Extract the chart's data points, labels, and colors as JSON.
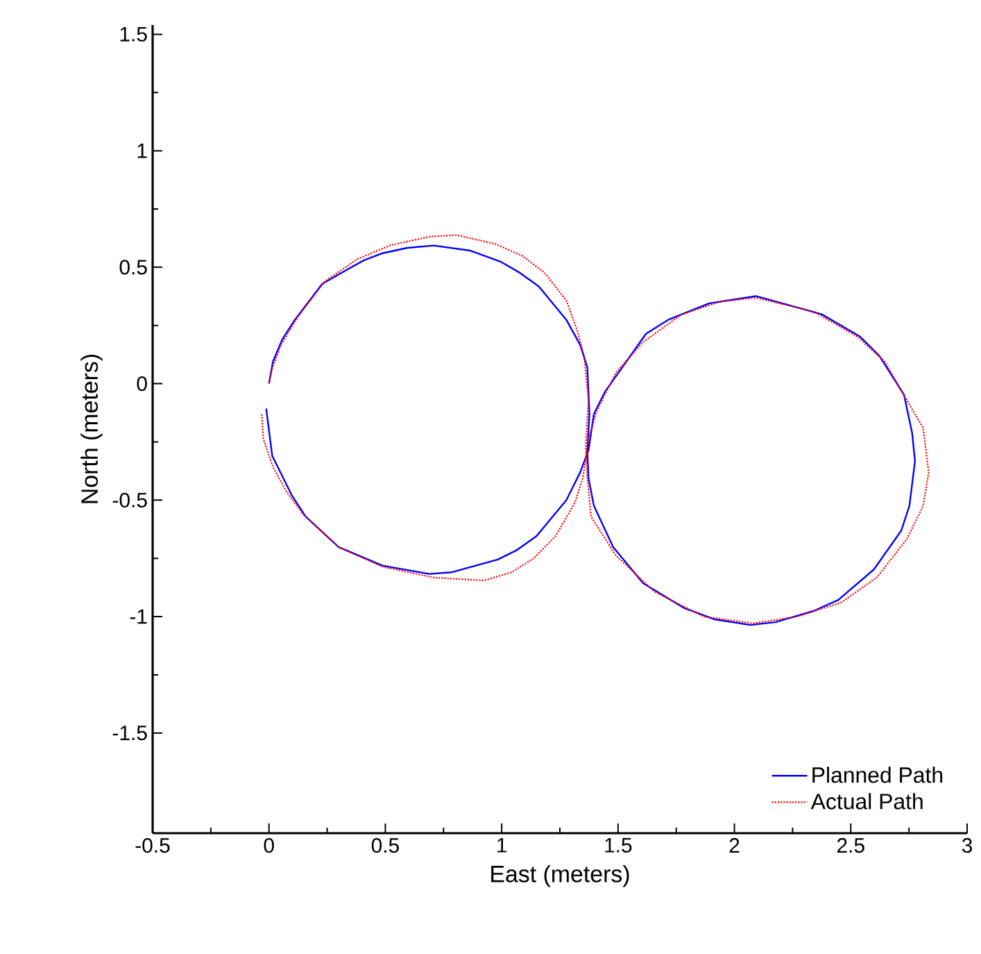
{
  "chart_data": {
    "type": "line",
    "xlabel": "East (meters)",
    "ylabel": "North (meters)",
    "xlim": [
      -0.5,
      3
    ],
    "ylim": [
      -1.93,
      1.54
    ],
    "xticks": [
      -0.5,
      0,
      0.5,
      1,
      1.5,
      2,
      2.5,
      3
    ],
    "yticks": [
      -1.5,
      -1,
      -0.5,
      0,
      0.5,
      1,
      1.5
    ],
    "grid": false,
    "legend": "bottom right",
    "series": [
      {
        "name": "Planned Path",
        "color": "#0000ff",
        "line_style": "solid",
        "x": [
          -0.012,
          0.014,
          0.099,
          0.158,
          0.3,
          0.488,
          0.689,
          0.783,
          0.983,
          1.066,
          1.149,
          1.278,
          1.337,
          1.373,
          1.396,
          1.443,
          1.62,
          1.715,
          1.892,
          2.092,
          2.375,
          2.54,
          2.623,
          2.729,
          2.764,
          2.776,
          2.752,
          2.717,
          2.599,
          2.446,
          2.34,
          2.175,
          2.068,
          1.915,
          1.785,
          1.608,
          1.479,
          1.396,
          1.373,
          1.368,
          1.377,
          1.368,
          1.337,
          1.278,
          1.16,
          1.078,
          0.995,
          0.866,
          0.708,
          0.594,
          0.488,
          0.406,
          0.229,
          0.111,
          0.057,
          0.017,
          0.0
        ],
        "values": [
          -0.107,
          -0.31,
          -0.481,
          -0.571,
          -0.702,
          -0.781,
          -0.817,
          -0.81,
          -0.755,
          -0.714,
          -0.655,
          -0.5,
          -0.381,
          -0.286,
          -0.131,
          -0.036,
          0.214,
          0.274,
          0.345,
          0.376,
          0.298,
          0.202,
          0.119,
          -0.048,
          -0.214,
          -0.333,
          -0.524,
          -0.631,
          -0.798,
          -0.929,
          -0.976,
          -1.024,
          -1.036,
          -1.012,
          -0.964,
          -0.857,
          -0.702,
          -0.524,
          -0.405,
          -0.286,
          -0.131,
          0.071,
          0.167,
          0.274,
          0.417,
          0.476,
          0.524,
          0.571,
          0.593,
          0.583,
          0.56,
          0.529,
          0.429,
          0.274,
          0.19,
          0.095,
          0.0
        ]
      },
      {
        "name": "Actual Path",
        "color": "#ff0000",
        "line_style": "dotted",
        "x": [
          -0.031,
          -0.024,
          0.017,
          0.075,
          0.146,
          0.3,
          0.488,
          0.712,
          0.925,
          1.042,
          1.137,
          1.231,
          1.314,
          1.349,
          1.373,
          1.408,
          1.491,
          1.608,
          1.774,
          1.939,
          2.092,
          2.34,
          2.528,
          2.646,
          2.741,
          2.811,
          2.835,
          2.811,
          2.741,
          2.611,
          2.458,
          2.269,
          2.08,
          1.868,
          1.656,
          1.491,
          1.384,
          1.368,
          1.361,
          1.373,
          1.354,
          1.325,
          1.278,
          1.184,
          1.09,
          0.972,
          0.807,
          0.689,
          0.524,
          0.382,
          0.241,
          0.123,
          0.052,
          0.012,
          0.0
        ],
        "values": [
          -0.131,
          -0.238,
          -0.357,
          -0.464,
          -0.56,
          -0.702,
          -0.786,
          -0.833,
          -0.845,
          -0.81,
          -0.75,
          -0.655,
          -0.512,
          -0.405,
          -0.238,
          -0.119,
          0.048,
          0.179,
          0.298,
          0.352,
          0.369,
          0.31,
          0.202,
          0.095,
          -0.071,
          -0.19,
          -0.381,
          -0.524,
          -0.667,
          -0.833,
          -0.94,
          -1.0,
          -1.029,
          -1.0,
          -0.893,
          -0.738,
          -0.571,
          -0.405,
          -0.262,
          -0.071,
          0.119,
          0.226,
          0.357,
          0.476,
          0.548,
          0.6,
          0.638,
          0.631,
          0.595,
          0.536,
          0.44,
          0.286,
          0.167,
          0.06,
          0.0
        ]
      }
    ]
  }
}
